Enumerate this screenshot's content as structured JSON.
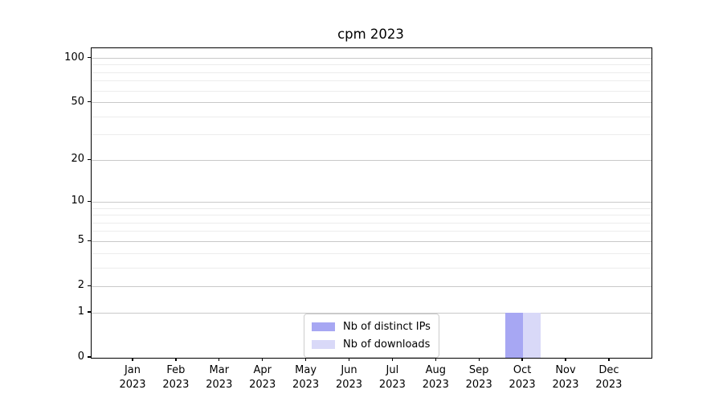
{
  "chart_data": {
    "type": "bar",
    "title": "cpm 2023",
    "categories": [
      "Jan 2023",
      "Feb 2023",
      "Mar 2023",
      "Apr 2023",
      "May 2023",
      "Jun 2023",
      "Jul 2023",
      "Aug 2023",
      "Sep 2023",
      "Oct 2023",
      "Nov 2023",
      "Dec 2023"
    ],
    "series": [
      {
        "name": "Nb of distinct IPs",
        "color": "#a7a7f3",
        "values": [
          0,
          0,
          0,
          0,
          0,
          0,
          0,
          0,
          0,
          1,
          0,
          0
        ]
      },
      {
        "name": "Nb of downloads",
        "color": "#d9d9f8",
        "values": [
          0,
          0,
          0,
          0,
          0,
          0,
          0,
          0,
          0,
          1,
          0,
          0
        ]
      }
    ],
    "xlabel": "",
    "ylabel": "",
    "yscale": "log1p",
    "ylim": [
      0,
      117
    ],
    "yticks": [
      0,
      1,
      2,
      5,
      10,
      20,
      50,
      100
    ],
    "yticks_minor": [
      3,
      4,
      6,
      7,
      8,
      9,
      30,
      40,
      60,
      70,
      80,
      90
    ],
    "grid": "horizontal",
    "legend_position": "inside-bottom-center"
  }
}
